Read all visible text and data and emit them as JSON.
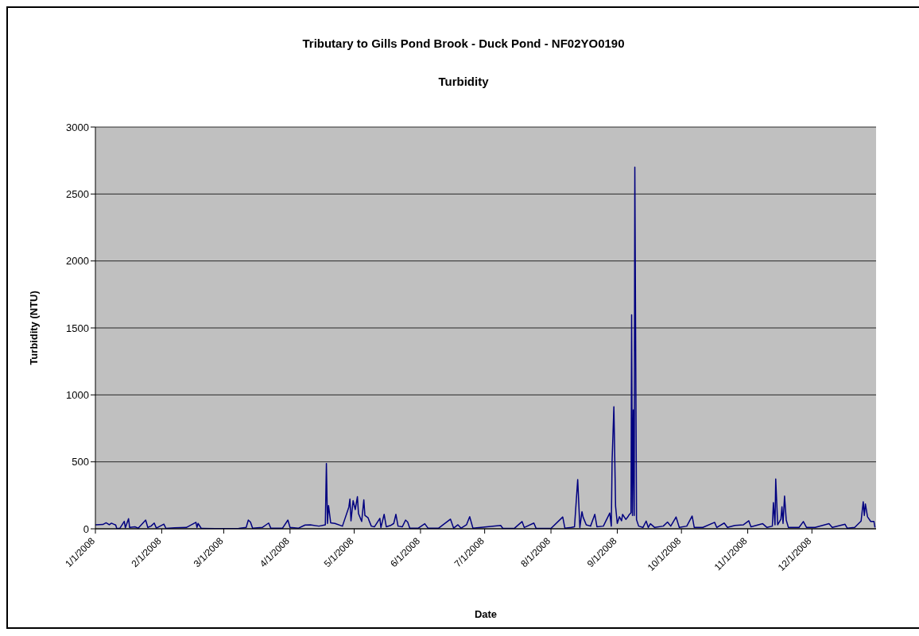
{
  "chart_data": {
    "type": "line",
    "title": "Tributary to Gills Pond Brook - Duck Pond - NF02YO0190",
    "subtitle": "Turbidity",
    "xlabel": "Date",
    "ylabel": "Turbidity (NTU)",
    "xlim": [
      "2008-01-01",
      "2008-12-31"
    ],
    "xticks": [
      {
        "value": "2008-01-01",
        "label": "1/1/2008"
      },
      {
        "value": "2008-02-01",
        "label": "2/1/2008"
      },
      {
        "value": "2008-03-01",
        "label": "3/1/2008"
      },
      {
        "value": "2008-04-01",
        "label": "4/1/2008"
      },
      {
        "value": "2008-05-01",
        "label": "5/1/2008"
      },
      {
        "value": "2008-06-01",
        "label": "6/1/2008"
      },
      {
        "value": "2008-07-01",
        "label": "7/1/2008"
      },
      {
        "value": "2008-08-01",
        "label": "8/1/2008"
      },
      {
        "value": "2008-09-01",
        "label": "9/1/2008"
      },
      {
        "value": "2008-10-01",
        "label": "10/1/2008"
      },
      {
        "value": "2008-11-01",
        "label": "11/1/2008"
      },
      {
        "value": "2008-12-01",
        "label": "12/1/2008"
      }
    ],
    "ylim": [
      0,
      3000
    ],
    "yticks": [
      0,
      500,
      1000,
      1500,
      2000,
      2500,
      3000
    ],
    "grid": "y",
    "marker": "none",
    "line_style": "solid",
    "x": [
      "2008-01-01",
      "2008-01-04T12:00",
      "2008-01-06",
      "2008-01-07T12:00",
      "2008-01-08T12:00",
      "2008-01-09T12:00",
      "2008-01-10T12:00",
      "2008-01-11",
      "2008-01-12T12:00",
      "2008-01-14T12:00",
      "2008-01-15",
      "2008-01-16T12:00",
      "2008-01-17",
      "2008-01-19T12:00",
      "2008-01-21",
      "2008-01-24T12:00",
      "2008-01-25T12:00",
      "2008-01-27",
      "2008-01-28T12:00",
      "2008-01-29T12:00",
      "2008-02-02",
      "2008-02-03",
      "2008-02-07",
      "2008-02-12T12:00",
      "2008-02-17",
      "2008-02-17T12:00",
      "2008-02-18",
      "2008-02-19T12:00",
      "2008-02-26",
      "2008-03-08",
      "2008-03-11T12:00",
      "2008-03-12T12:00",
      "2008-03-13T12:00",
      "2008-03-14T12:00",
      "2008-03-19",
      "2008-03-22",
      "2008-03-23",
      "2008-03-28T12:00",
      "2008-03-31",
      "2008-04-01",
      "2008-04-05",
      "2008-04-08",
      "2008-04-10T12:00",
      "2008-04-14T12:00",
      "2008-04-17T12:00",
      "2008-04-18",
      "2008-04-18T12:00",
      "2008-04-19",
      "2008-04-20",
      "2008-04-22",
      "2008-04-25T12:00",
      "2008-04-28T12:00",
      "2008-04-29",
      "2008-04-29T12:00",
      "2008-04-30T12:00",
      "2008-05-01T12:00",
      "2008-05-02T12:00",
      "2008-05-03",
      "2008-05-04T12:00",
      "2008-05-05T12:00",
      "2008-05-06",
      "2008-05-07T12:00",
      "2008-05-08",
      "2008-05-09",
      "2008-05-10T12:00",
      "2008-05-13",
      "2008-05-13T12:00",
      "2008-05-15",
      "2008-05-16",
      "2008-05-18",
      "2008-05-19T12:00",
      "2008-05-20T12:00",
      "2008-05-21T12:00",
      "2008-05-23T12:00",
      "2008-05-25",
      "2008-05-26",
      "2008-05-27",
      "2008-05-31",
      "2008-06-03",
      "2008-06-04T12:00",
      "2008-06-09T12:00",
      "2008-06-15",
      "2008-06-16T12:00",
      "2008-06-18T12:00",
      "2008-06-20",
      "2008-06-22T12:00",
      "2008-06-24",
      "2008-06-25T12:00",
      "2008-07-02",
      "2008-07-08T12:00",
      "2008-07-09T12:00",
      "2008-07-15",
      "2008-07-18T12:00",
      "2008-07-19T12:00",
      "2008-07-24",
      "2008-07-25",
      "2008-08-01",
      "2008-08-06T12:00",
      "2008-08-07T12:00",
      "2008-08-10T12:00",
      "2008-08-12",
      "2008-08-13T12:00",
      "2008-08-14T12:00",
      "2008-08-15T12:00",
      "2008-08-16",
      "2008-08-17T12:00",
      "2008-08-19T12:00",
      "2008-08-21T12:00",
      "2008-08-22T12:00",
      "2008-08-25T12:00",
      "2008-08-28T12:00",
      "2008-08-29T05:00",
      "2008-08-29T14:00",
      "2008-08-30T10:00",
      "2008-08-31T05:00",
      "2008-09-01",
      "2008-09-02",
      "2008-09-03",
      "2008-09-03T12:00",
      "2008-09-05",
      "2008-09-06",
      "2008-09-06T12:00",
      "2008-09-07T10:00",
      "2008-09-07T17:00",
      "2008-09-08T02:00",
      "2008-09-08T12:00",
      "2008-09-08T22:00",
      "2008-09-09T05:00",
      "2008-09-10",
      "2008-09-11",
      "2008-09-13",
      "2008-09-14T12:00",
      "2008-09-15T12:00",
      "2008-09-16T12:00",
      "2008-09-18T12:00",
      "2008-09-22T12:00",
      "2008-09-24T12:00",
      "2008-09-26",
      "2008-09-28T12:00",
      "2008-09-30",
      "2008-10-03T12:00",
      "2008-10-06",
      "2008-10-07",
      "2008-10-11",
      "2008-10-16T12:00",
      "2008-10-17T12:00",
      "2008-10-21",
      "2008-10-22T12:00",
      "2008-10-26",
      "2008-10-30",
      "2008-11-01T12:00",
      "2008-11-02T12:00",
      "2008-11-08",
      "2008-11-10",
      "2008-11-12T12:00",
      "2008-11-13",
      "2008-11-13T18:00",
      "2008-11-14T02:00",
      "2008-11-15",
      "2008-11-16T12:00",
      "2008-11-17",
      "2008-11-17T12:00",
      "2008-11-18T05:00",
      "2008-11-19",
      "2008-11-20",
      "2008-11-25",
      "2008-11-27",
      "2008-11-28T12:00",
      "2008-12-02T12:00",
      "2008-12-09",
      "2008-12-10T12:00",
      "2008-12-16T12:00",
      "2008-12-17T12:00",
      "2008-12-21",
      "2008-12-24",
      "2008-12-25",
      "2008-12-25T12:00",
      "2008-12-26",
      "2008-12-27",
      "2008-12-28T12:00",
      "2008-12-30",
      "2008-12-30T12:00"
    ],
    "series": [
      {
        "color": "#000080",
        "values": [
          30,
          32,
          45,
          30,
          42,
          35,
          28,
          2,
          5,
          56,
          8,
          76,
          10,
          15,
          5,
          65,
          10,
          20,
          43,
          5,
          35,
          3,
          8,
          10,
          48,
          10,
          40,
          3,
          2,
          3,
          10,
          65,
          50,
          5,
          10,
          43,
          5,
          5,
          65,
          10,
          5,
          28,
          30,
          20,
          30,
          488,
          40,
          174,
          45,
          40,
          20,
          162,
          222,
          60,
          210,
          144,
          240,
          114,
          55,
          216,
          100,
          82,
          60,
          20,
          15,
          78,
          10,
          108,
          15,
          25,
          40,
          108,
          20,
          15,
          65,
          50,
          5,
          5,
          38,
          5,
          5,
          72,
          5,
          30,
          5,
          30,
          90,
          5,
          15,
          25,
          3,
          5,
          54,
          10,
          43,
          5,
          3,
          88,
          5,
          10,
          15,
          368,
          10,
          128,
          88,
          30,
          20,
          108,
          15,
          20,
          118,
          20,
          510,
          912,
          168,
          40,
          90,
          60,
          108,
          70,
          90,
          104,
          120,
          1598,
          100,
          888,
          100,
          2700,
          68,
          20,
          10,
          58,
          10,
          38,
          10,
          20,
          50,
          20,
          88,
          10,
          20,
          95,
          10,
          10,
          48,
          10,
          43,
          10,
          25,
          30,
          60,
          15,
          38,
          10,
          20,
          196,
          30,
          372,
          30,
          72,
          164,
          40,
          244,
          65,
          10,
          10,
          54,
          10,
          10,
          38,
          10,
          34,
          5,
          10,
          58,
          202,
          100,
          186,
          90,
          55,
          55,
          10
        ]
      }
    ]
  }
}
